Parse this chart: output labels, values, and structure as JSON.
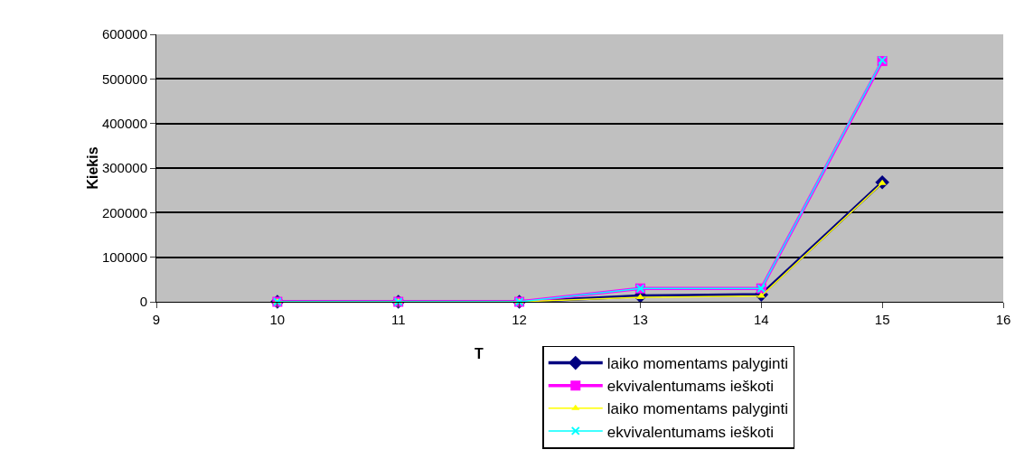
{
  "chart_data": {
    "type": "line",
    "xlabel": "T",
    "ylabel": "Kiekis",
    "x": [
      10,
      11,
      12,
      13,
      14,
      15
    ],
    "series": [
      {
        "name": "laiko momentams palyginti",
        "color": "#000080",
        "marker": "diamond",
        "values": [
          0,
          0,
          0,
          13000,
          16000,
          268000
        ]
      },
      {
        "name": "ekvivalentumams ieškoti",
        "color": "#ff00ff",
        "marker": "square",
        "values": [
          0,
          0,
          0,
          30000,
          30000,
          540000
        ]
      },
      {
        "name": "laiko momentams palyginti",
        "color": "#ffff00",
        "marker": "triangle",
        "values": [
          0,
          0,
          0,
          10000,
          13000,
          266000
        ]
      },
      {
        "name": "ekvivalentumams ieškoti",
        "color": "#00ffff",
        "marker": "cross",
        "values": [
          0,
          0,
          0,
          30000,
          30000,
          542000
        ]
      }
    ],
    "xlim": [
      9,
      16
    ],
    "xticks": [
      9,
      10,
      11,
      12,
      13,
      14,
      15,
      16
    ],
    "ylim": [
      0,
      600000
    ],
    "yticks": [
      0,
      100000,
      200000,
      300000,
      400000,
      500000,
      600000
    ],
    "grid": "y",
    "legend": "bottom right"
  }
}
